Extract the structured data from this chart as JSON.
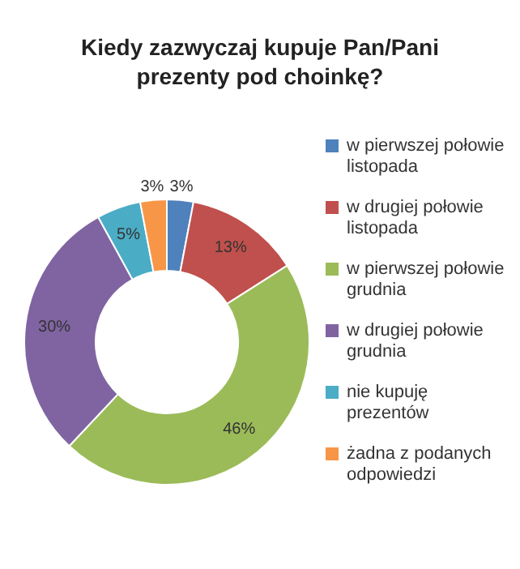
{
  "chart_data": {
    "type": "donut",
    "title": "Kiedy zazwyczaj kupuje Pan/Pani prezenty pod choinkę?",
    "categories": [
      "w pierwszej połowie listopada",
      "w drugiej połowie listopada",
      "w pierwszej połowie grudnia",
      "w drugiej połowie grudnia",
      "nie kupuję prezentów",
      "żadna z podanych odpowiedzi"
    ],
    "values": [
      3,
      13,
      46,
      30,
      5,
      3
    ],
    "value_labels": [
      "3%",
      "13%",
      "46%",
      "30%",
      "5%",
      "3%"
    ],
    "colors": [
      "#4f81bd",
      "#c0504d",
      "#9bbb59",
      "#8064a2",
      "#4bacc6",
      "#f79646"
    ],
    "legend": "right"
  }
}
